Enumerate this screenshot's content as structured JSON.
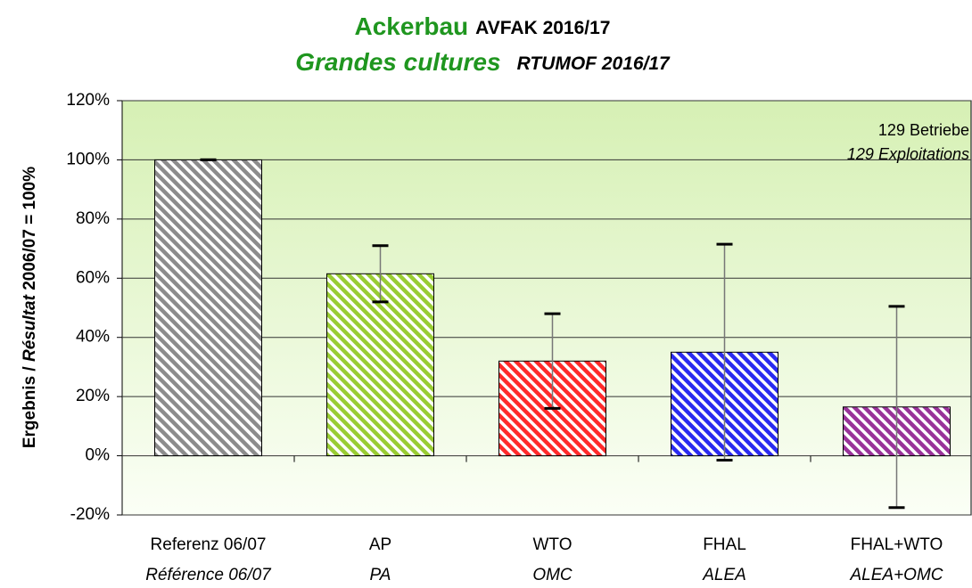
{
  "chart_data": {
    "type": "bar",
    "title": "Ackerbau",
    "title_suffix": "AVFAK 2016/17",
    "subtitle": "Grandes cultures",
    "subtitle_suffix": "RTUMOF 2016/17",
    "y_label": [
      "Ergebnis / ",
      "Résultat",
      " 2006/07 = 100%"
    ],
    "annotation": [
      "129 Betriebe",
      "129 Exploitations"
    ],
    "categories": [
      "Referenz 06/07",
      "AP",
      "WTO",
      "FHAL",
      "FHAL+WTO"
    ],
    "categories_fr": [
      "Référence 06/07",
      "PA",
      "OMC",
      "ALEA",
      "ALEA+OMC"
    ],
    "values": [
      100,
      61.5,
      32,
      35,
      16.5
    ],
    "errors": [
      0,
      9.5,
      16,
      36.5,
      34
    ],
    "colors": [
      "#8c8c8c",
      "#99cc33",
      "#ff2a2a",
      "#2a2af0",
      "#993399"
    ],
    "ylim": [
      -20,
      120
    ],
    "yticks": [
      {
        "value": -20,
        "label": "-20%"
      },
      {
        "value": 0,
        "label": "0%"
      },
      {
        "value": 20,
        "label": "20%"
      },
      {
        "value": 40,
        "label": "40%"
      },
      {
        "value": 60,
        "label": "60%"
      },
      {
        "value": 80,
        "label": "80%"
      },
      {
        "value": 100,
        "label": "100%"
      },
      {
        "value": 120,
        "label": "120%"
      }
    ],
    "grid": true
  }
}
